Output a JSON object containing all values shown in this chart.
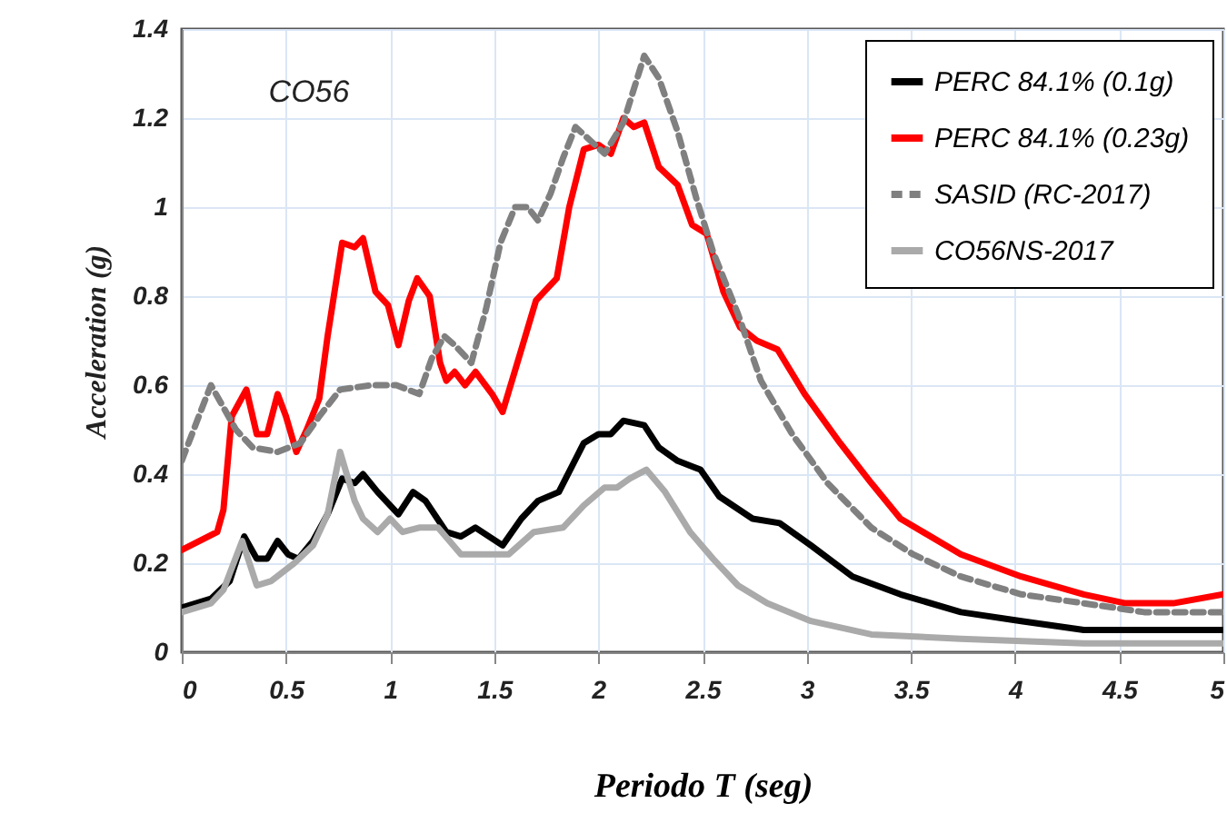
{
  "chart_data": {
    "type": "line",
    "xlabel": "Periodo T (seg)",
    "ylabel": "Acceleration (g)",
    "annotations": [
      "CO56"
    ],
    "xlim": [
      0,
      5
    ],
    "xticks": [
      0,
      0.5,
      1,
      1.5,
      2,
      2.5,
      3,
      3.5,
      4,
      4.5,
      5
    ],
    "ylim": [
      0,
      1.4
    ],
    "yticks": [
      0,
      0.2,
      0.4,
      0.6,
      0.8,
      1,
      1.2,
      1.4
    ],
    "grid": true,
    "legend": "top right",
    "marker": "none",
    "series": [
      {
        "name": "PERC 84.1% (0.1g)",
        "color": "#000000",
        "line_style": "solid",
        "x": [
          0,
          0.14,
          0.23,
          0.3,
          0.36,
          0.41,
          0.46,
          0.51,
          0.56,
          0.63,
          0.7,
          0.77,
          0.83,
          0.87,
          0.94,
          1.04,
          1.11,
          1.17,
          1.27,
          1.34,
          1.41,
          1.54,
          1.63,
          1.71,
          1.81,
          1.93,
          2.0,
          2.06,
          2.12,
          2.22,
          2.29,
          2.38,
          2.49,
          2.58,
          2.74,
          2.87,
          3.02,
          3.22,
          3.45,
          3.74,
          4.03,
          4.33,
          4.62,
          5.0
        ],
        "values": [
          0.1,
          0.12,
          0.16,
          0.26,
          0.21,
          0.21,
          0.25,
          0.22,
          0.21,
          0.25,
          0.31,
          0.39,
          0.38,
          0.4,
          0.36,
          0.31,
          0.36,
          0.34,
          0.27,
          0.26,
          0.28,
          0.24,
          0.3,
          0.34,
          0.36,
          0.47,
          0.49,
          0.49,
          0.52,
          0.51,
          0.46,
          0.43,
          0.41,
          0.35,
          0.3,
          0.29,
          0.24,
          0.17,
          0.13,
          0.09,
          0.07,
          0.05,
          0.05,
          0.05
        ]
      },
      {
        "name": "PERC 84.1% (0.23g)",
        "color": "#ff0000",
        "line_style": "solid",
        "x": [
          0,
          0.17,
          0.2,
          0.24,
          0.31,
          0.36,
          0.41,
          0.46,
          0.5,
          0.55,
          0.6,
          0.66,
          0.7,
          0.77,
          0.83,
          0.87,
          0.93,
          0.99,
          1.04,
          1.09,
          1.13,
          1.19,
          1.24,
          1.27,
          1.31,
          1.36,
          1.41,
          1.49,
          1.54,
          1.63,
          1.7,
          1.8,
          1.86,
          1.93,
          2.0,
          2.06,
          2.12,
          2.17,
          2.22,
          2.29,
          2.38,
          2.45,
          2.52,
          2.6,
          2.68,
          2.76,
          2.86,
          2.99,
          3.16,
          3.31,
          3.45,
          3.74,
          4.03,
          4.33,
          4.53,
          4.76,
          5.0
        ],
        "values": [
          0.23,
          0.27,
          0.32,
          0.53,
          0.59,
          0.49,
          0.49,
          0.58,
          0.53,
          0.45,
          0.5,
          0.57,
          0.71,
          0.92,
          0.91,
          0.93,
          0.81,
          0.78,
          0.69,
          0.79,
          0.84,
          0.8,
          0.65,
          0.61,
          0.63,
          0.6,
          0.63,
          0.58,
          0.54,
          0.68,
          0.79,
          0.84,
          1.0,
          1.13,
          1.14,
          1.12,
          1.2,
          1.18,
          1.19,
          1.09,
          1.05,
          0.96,
          0.94,
          0.81,
          0.73,
          0.7,
          0.68,
          0.58,
          0.47,
          0.38,
          0.3,
          0.22,
          0.17,
          0.13,
          0.11,
          0.11,
          0.13
        ]
      },
      {
        "name": "SASID (RC-2017)",
        "color": "#808080",
        "line_style": "dashed",
        "x": [
          0,
          0.09,
          0.14,
          0.2,
          0.26,
          0.34,
          0.46,
          0.57,
          0.66,
          0.76,
          0.91,
          1.03,
          1.14,
          1.2,
          1.26,
          1.31,
          1.39,
          1.46,
          1.53,
          1.6,
          1.66,
          1.71,
          1.77,
          1.83,
          1.89,
          1.96,
          2.03,
          2.12,
          2.22,
          2.29,
          2.38,
          2.47,
          2.55,
          2.67,
          2.78,
          2.93,
          3.1,
          3.31,
          3.51,
          3.74,
          4.03,
          4.33,
          4.62,
          5.0
        ],
        "values": [
          0.43,
          0.54,
          0.6,
          0.55,
          0.5,
          0.46,
          0.45,
          0.47,
          0.53,
          0.59,
          0.6,
          0.6,
          0.58,
          0.66,
          0.71,
          0.69,
          0.65,
          0.77,
          0.92,
          1.0,
          1.0,
          0.97,
          1.03,
          1.11,
          1.18,
          1.15,
          1.12,
          1.19,
          1.34,
          1.29,
          1.17,
          1.02,
          0.9,
          0.76,
          0.61,
          0.49,
          0.38,
          0.28,
          0.22,
          0.17,
          0.13,
          0.11,
          0.09,
          0.09
        ]
      },
      {
        "name": "CO56NS-2017",
        "color": "#aaaaaa",
        "line_style": "solid",
        "x": [
          0,
          0.14,
          0.2,
          0.29,
          0.36,
          0.43,
          0.54,
          0.63,
          0.7,
          0.76,
          0.83,
          0.87,
          0.94,
          1.0,
          1.06,
          1.14,
          1.23,
          1.34,
          1.46,
          1.57,
          1.69,
          1.83,
          1.93,
          2.03,
          2.09,
          2.15,
          2.23,
          2.32,
          2.44,
          2.55,
          2.67,
          2.81,
          3.02,
          3.31,
          3.74,
          4.33,
          5.0
        ],
        "values": [
          0.09,
          0.11,
          0.14,
          0.25,
          0.15,
          0.16,
          0.2,
          0.24,
          0.31,
          0.45,
          0.34,
          0.3,
          0.27,
          0.3,
          0.27,
          0.28,
          0.28,
          0.22,
          0.22,
          0.22,
          0.27,
          0.28,
          0.33,
          0.37,
          0.37,
          0.39,
          0.41,
          0.36,
          0.27,
          0.21,
          0.15,
          0.11,
          0.07,
          0.04,
          0.03,
          0.02,
          0.02
        ]
      }
    ]
  }
}
